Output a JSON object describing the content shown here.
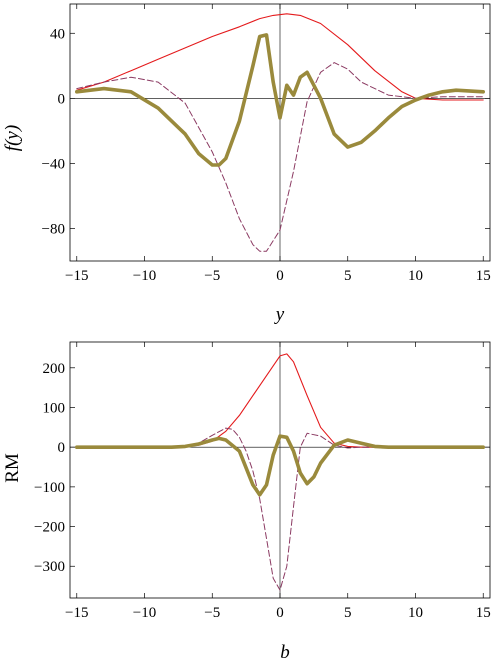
{
  "chart_data": [
    {
      "type": "line",
      "xlabel": "y",
      "ylabel": "f(y)",
      "xlim": [
        -15.5,
        15.5
      ],
      "ylim": [
        -100,
        58
      ],
      "xticks": [
        -15,
        -10,
        -5,
        0,
        5,
        10,
        15
      ],
      "yticks": [
        -80,
        -40,
        0,
        40
      ],
      "xtick_labels": [
        "−15",
        "−10",
        "−5",
        "0",
        "5",
        "10",
        "15"
      ],
      "ytick_labels": [
        "−80",
        "−40",
        "0",
        "40"
      ],
      "frame": true,
      "zero_lines": true,
      "series": [
        {
          "style": "solid-thin",
          "color": "#e41a1c",
          "x": [
            -15,
            -13,
            -11,
            -9,
            -7,
            -5,
            -3,
            -1.5,
            -0.5,
            0.5,
            1.5,
            3,
            5,
            7,
            9,
            10,
            12,
            15
          ],
          "y": [
            5,
            10,
            17,
            24,
            31,
            38,
            44,
            49,
            51,
            52,
            51,
            46,
            33,
            17,
            4,
            0,
            -1,
            -1
          ]
        },
        {
          "style": "dashed",
          "color": "#8b3a62",
          "x": [
            -15,
            -13,
            -11,
            -9,
            -7,
            -5,
            -4,
            -3,
            -2,
            -1.5,
            -1,
            0,
            1,
            2,
            3,
            4,
            5,
            6,
            8,
            10,
            12,
            15
          ],
          "y": [
            6,
            10,
            13,
            10,
            -3,
            -33,
            -52,
            -74,
            -90,
            -94,
            -94,
            -81,
            -45,
            -2,
            16,
            22,
            18,
            10,
            2,
            0,
            1,
            1
          ]
        },
        {
          "style": "solid-thick",
          "color": "#9a8a3c",
          "x": [
            -15,
            -13,
            -11,
            -9,
            -7,
            -6,
            -5,
            -4.5,
            -4,
            -3,
            -2,
            -1.5,
            -1,
            -0.5,
            0,
            0.5,
            1,
            1.5,
            2,
            3,
            4,
            5,
            6,
            7,
            8,
            9,
            10,
            11,
            12,
            13,
            15
          ],
          "y": [
            4,
            6,
            4,
            -6,
            -22,
            -34,
            -41,
            -41,
            -37,
            -14,
            20,
            38,
            39,
            10,
            -12,
            8,
            2,
            13,
            16,
            0,
            -22,
            -30,
            -27,
            -20,
            -12,
            -5,
            -1,
            2,
            4,
            5,
            4
          ]
        }
      ]
    },
    {
      "type": "line",
      "xlabel": "b",
      "ylabel": "RM",
      "xlim": [
        -15.5,
        15.5
      ],
      "ylim": [
        -380,
        265
      ],
      "xticks": [
        -15,
        -10,
        -5,
        0,
        5,
        10,
        15
      ],
      "yticks": [
        -300,
        -200,
        -100,
        0,
        100,
        200
      ],
      "xtick_labels": [
        "−15",
        "−10",
        "−5",
        "0",
        "5",
        "10",
        "15"
      ],
      "ytick_labels": [
        "−300",
        "−200",
        "−100",
        "0",
        "100",
        "200"
      ],
      "frame": true,
      "zero_lines": true,
      "series": [
        {
          "style": "solid-thin",
          "color": "#e41a1c",
          "x": [
            -15,
            -10,
            -8,
            -7,
            -6,
            -5,
            -4,
            -3,
            -2,
            -1,
            0,
            0.5,
            1,
            2,
            3,
            4,
            5,
            6,
            8,
            10,
            15
          ],
          "y": [
            0,
            0,
            0,
            2,
            5,
            15,
            40,
            80,
            130,
            180,
            230,
            235,
            215,
            130,
            50,
            10,
            2,
            0,
            0,
            0,
            0
          ]
        },
        {
          "style": "dashed",
          "color": "#8b3a62",
          "x": [
            -15,
            -8,
            -7,
            -6,
            -5,
            -4,
            -3.5,
            -3,
            -2.5,
            -2,
            -1.5,
            -1,
            -0.5,
            0,
            0.5,
            1,
            1.5,
            2,
            3,
            4,
            5,
            6,
            8,
            15
          ],
          "y": [
            0,
            0,
            2,
            10,
            30,
            48,
            45,
            25,
            -10,
            -60,
            -130,
            -230,
            -330,
            -360,
            -300,
            -150,
            0,
            35,
            28,
            5,
            -2,
            0,
            0,
            0
          ]
        },
        {
          "style": "solid-thick",
          "color": "#9a8a3c",
          "x": [
            -15,
            -8,
            -7,
            -6,
            -5,
            -4.5,
            -4,
            -3,
            -2,
            -1.5,
            -1,
            -0.5,
            0,
            0.5,
            1,
            1.5,
            2,
            2.5,
            3,
            4,
            5,
            6,
            7,
            8,
            15
          ],
          "y": [
            0,
            0,
            2,
            8,
            18,
            22,
            18,
            -10,
            -95,
            -120,
            -95,
            -20,
            28,
            25,
            -10,
            -65,
            -92,
            -75,
            -40,
            5,
            18,
            10,
            2,
            0,
            0
          ]
        }
      ]
    }
  ]
}
